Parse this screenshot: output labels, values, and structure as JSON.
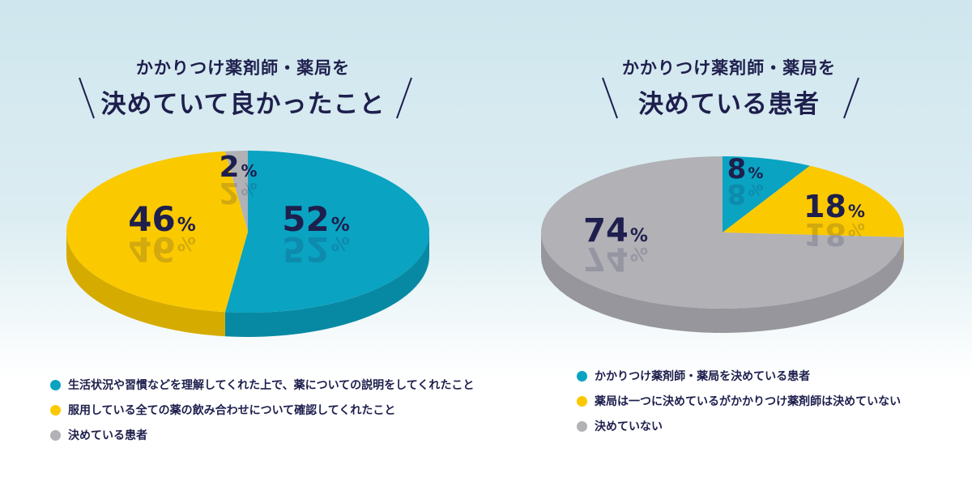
{
  "colors": {
    "blue": "#0aa3c2",
    "blue_side": "#0889a3",
    "yellow": "#fbc900",
    "yellow_side": "#d6ab00",
    "gray": "#b1b1b6",
    "gray_side": "#96969c",
    "text": "#1e1f4d"
  },
  "chart_data": [
    {
      "type": "pie",
      "title_line1": "かかりつけ薬剤師・薬局を",
      "title_line2": "決めていて良かったこと",
      "categories": [
        "生活状況や習慣などを理解してくれた上で、薬についての説明をしてくれたこと",
        "服用している全ての薬の飲み合わせについて確認してくれたこと",
        "決めている患者"
      ],
      "values": [
        52,
        46,
        2
      ],
      "labels": [
        "52",
        "46",
        "2"
      ],
      "unit": "%",
      "legend_position": "bottom"
    },
    {
      "type": "pie",
      "title_line1": "かかりつけ薬剤師・薬局を",
      "title_line2": "決めている患者",
      "categories": [
        "かかりつけ薬剤師・薬局を決めている患者",
        "薬局は一つに決めているがかかりつけ薬剤師は決めていない",
        "決めていない"
      ],
      "values": [
        8,
        18,
        74
      ],
      "labels": [
        "8",
        "18",
        "74"
      ],
      "unit": "%",
      "legend_position": "bottom"
    }
  ]
}
